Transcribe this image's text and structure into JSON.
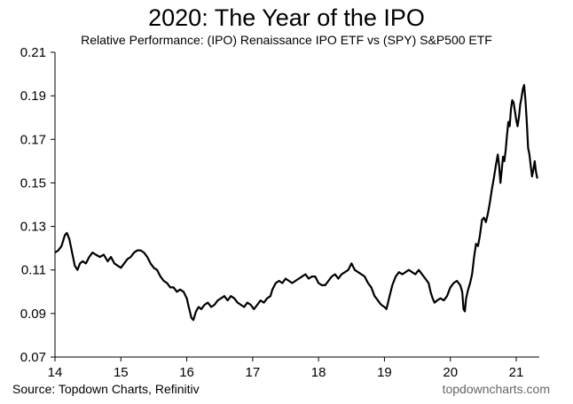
{
  "title": "2020: The Year of the IPO",
  "subtitle": "Relative Performance: (IPO) Renaissance IPO ETF vs (SPY) S&P500 ETF",
  "source": "Source: Topdown Charts, Refinitiv",
  "brand": "topdowncharts.com",
  "chart_data": {
    "type": "line",
    "title": "2020: The Year of the IPO",
    "subtitle": "Relative Performance: (IPO) Renaissance IPO ETF vs (SPY) S&P500 ETF",
    "xlabel": "",
    "ylabel": "",
    "xlim": [
      14,
      21.35
    ],
    "ylim": [
      0.07,
      0.21
    ],
    "x_ticks": [
      14,
      15,
      16,
      17,
      18,
      19,
      20,
      21
    ],
    "x_tick_labels": [
      "14",
      "15",
      "16",
      "17",
      "18",
      "19",
      "20",
      "21"
    ],
    "y_ticks": [
      0.07,
      0.09,
      0.11,
      0.13,
      0.15,
      0.17,
      0.19,
      0.21
    ],
    "y_tick_labels": [
      "0.07",
      "0.09",
      "0.11",
      "0.13",
      "0.15",
      "0.17",
      "0.19",
      "0.21"
    ],
    "grid": false,
    "legend": "none",
    "color": "#000000",
    "series": [
      {
        "points": [
          [
            14.0,
            0.118
          ],
          [
            14.05,
            0.119
          ],
          [
            14.1,
            0.121
          ],
          [
            14.15,
            0.126
          ],
          [
            14.18,
            0.127
          ],
          [
            14.22,
            0.124
          ],
          [
            14.26,
            0.118
          ],
          [
            14.3,
            0.112
          ],
          [
            14.34,
            0.11
          ],
          [
            14.38,
            0.113
          ],
          [
            14.42,
            0.114
          ],
          [
            14.47,
            0.113
          ],
          [
            14.52,
            0.116
          ],
          [
            14.57,
            0.118
          ],
          [
            14.62,
            0.117
          ],
          [
            14.68,
            0.116
          ],
          [
            14.74,
            0.117
          ],
          [
            14.8,
            0.114
          ],
          [
            14.85,
            0.116
          ],
          [
            14.9,
            0.113
          ],
          [
            14.95,
            0.112
          ],
          [
            15.0,
            0.111
          ],
          [
            15.05,
            0.113
          ],
          [
            15.1,
            0.115
          ],
          [
            15.15,
            0.116
          ],
          [
            15.2,
            0.118
          ],
          [
            15.25,
            0.119
          ],
          [
            15.3,
            0.119
          ],
          [
            15.35,
            0.118
          ],
          [
            15.4,
            0.116
          ],
          [
            15.45,
            0.113
          ],
          [
            15.5,
            0.111
          ],
          [
            15.55,
            0.11
          ],
          [
            15.6,
            0.107
          ],
          [
            15.65,
            0.105
          ],
          [
            15.7,
            0.104
          ],
          [
            15.75,
            0.102
          ],
          [
            15.8,
            0.102
          ],
          [
            15.85,
            0.1
          ],
          [
            15.9,
            0.101
          ],
          [
            15.95,
            0.1
          ],
          [
            16.0,
            0.097
          ],
          [
            16.03,
            0.093
          ],
          [
            16.07,
            0.088
          ],
          [
            16.1,
            0.087
          ],
          [
            16.14,
            0.091
          ],
          [
            16.18,
            0.093
          ],
          [
            16.22,
            0.092
          ],
          [
            16.27,
            0.094
          ],
          [
            16.32,
            0.095
          ],
          [
            16.37,
            0.093
          ],
          [
            16.42,
            0.094
          ],
          [
            16.47,
            0.096
          ],
          [
            16.52,
            0.097
          ],
          [
            16.57,
            0.098
          ],
          [
            16.62,
            0.096
          ],
          [
            16.67,
            0.098
          ],
          [
            16.72,
            0.097
          ],
          [
            16.77,
            0.095
          ],
          [
            16.82,
            0.094
          ],
          [
            16.87,
            0.093
          ],
          [
            16.92,
            0.095
          ],
          [
            16.97,
            0.094
          ],
          [
            17.02,
            0.092
          ],
          [
            17.07,
            0.094
          ],
          [
            17.12,
            0.096
          ],
          [
            17.17,
            0.095
          ],
          [
            17.22,
            0.097
          ],
          [
            17.27,
            0.098
          ],
          [
            17.3,
            0.101
          ],
          [
            17.35,
            0.104
          ],
          [
            17.4,
            0.105
          ],
          [
            17.45,
            0.104
          ],
          [
            17.5,
            0.106
          ],
          [
            17.55,
            0.105
          ],
          [
            17.6,
            0.104
          ],
          [
            17.65,
            0.105
          ],
          [
            17.7,
            0.106
          ],
          [
            17.75,
            0.107
          ],
          [
            17.8,
            0.108
          ],
          [
            17.85,
            0.106
          ],
          [
            17.9,
            0.107
          ],
          [
            17.95,
            0.107
          ],
          [
            18.0,
            0.104
          ],
          [
            18.05,
            0.103
          ],
          [
            18.1,
            0.103
          ],
          [
            18.15,
            0.105
          ],
          [
            18.2,
            0.107
          ],
          [
            18.25,
            0.108
          ],
          [
            18.3,
            0.106
          ],
          [
            18.35,
            0.108
          ],
          [
            18.4,
            0.109
          ],
          [
            18.45,
            0.11
          ],
          [
            18.5,
            0.113
          ],
          [
            18.55,
            0.11
          ],
          [
            18.6,
            0.109
          ],
          [
            18.65,
            0.108
          ],
          [
            18.7,
            0.107
          ],
          [
            18.75,
            0.104
          ],
          [
            18.8,
            0.102
          ],
          [
            18.85,
            0.098
          ],
          [
            18.9,
            0.096
          ],
          [
            18.95,
            0.094
          ],
          [
            19.0,
            0.093
          ],
          [
            19.03,
            0.092
          ],
          [
            19.07,
            0.097
          ],
          [
            19.12,
            0.103
          ],
          [
            19.17,
            0.107
          ],
          [
            19.22,
            0.109
          ],
          [
            19.27,
            0.108
          ],
          [
            19.32,
            0.109
          ],
          [
            19.37,
            0.11
          ],
          [
            19.42,
            0.109
          ],
          [
            19.47,
            0.108
          ],
          [
            19.52,
            0.11
          ],
          [
            19.57,
            0.108
          ],
          [
            19.62,
            0.106
          ],
          [
            19.67,
            0.104
          ],
          [
            19.7,
            0.1
          ],
          [
            19.73,
            0.097
          ],
          [
            19.76,
            0.095
          ],
          [
            19.8,
            0.096
          ],
          [
            19.85,
            0.097
          ],
          [
            19.9,
            0.096
          ],
          [
            19.95,
            0.098
          ],
          [
            20.0,
            0.102
          ],
          [
            20.05,
            0.104
          ],
          [
            20.1,
            0.105
          ],
          [
            20.15,
            0.103
          ],
          [
            20.18,
            0.1
          ],
          [
            20.2,
            0.092
          ],
          [
            20.22,
            0.091
          ],
          [
            20.24,
            0.097
          ],
          [
            20.27,
            0.101
          ],
          [
            20.3,
            0.104
          ],
          [
            20.33,
            0.108
          ],
          [
            20.36,
            0.116
          ],
          [
            20.39,
            0.122
          ],
          [
            20.42,
            0.121
          ],
          [
            20.45,
            0.126
          ],
          [
            20.48,
            0.133
          ],
          [
            20.51,
            0.134
          ],
          [
            20.54,
            0.132
          ],
          [
            20.57,
            0.136
          ],
          [
            20.6,
            0.141
          ],
          [
            20.63,
            0.147
          ],
          [
            20.66,
            0.152
          ],
          [
            20.69,
            0.158
          ],
          [
            20.72,
            0.163
          ],
          [
            20.74,
            0.158
          ],
          [
            20.76,
            0.15
          ],
          [
            20.78,
            0.156
          ],
          [
            20.8,
            0.162
          ],
          [
            20.82,
            0.16
          ],
          [
            20.84,
            0.165
          ],
          [
            20.86,
            0.172
          ],
          [
            20.88,
            0.178
          ],
          [
            20.9,
            0.176
          ],
          [
            20.92,
            0.184
          ],
          [
            20.94,
            0.188
          ],
          [
            20.96,
            0.187
          ],
          [
            20.98,
            0.183
          ],
          [
            21.0,
            0.179
          ],
          [
            21.02,
            0.176
          ],
          [
            21.04,
            0.18
          ],
          [
            21.06,
            0.186
          ],
          [
            21.08,
            0.189
          ],
          [
            21.1,
            0.193
          ],
          [
            21.12,
            0.195
          ],
          [
            21.14,
            0.188
          ],
          [
            21.16,
            0.178
          ],
          [
            21.18,
            0.166
          ],
          [
            21.2,
            0.163
          ],
          [
            21.22,
            0.158
          ],
          [
            21.24,
            0.153
          ],
          [
            21.26,
            0.156
          ],
          [
            21.28,
            0.16
          ],
          [
            21.3,
            0.155
          ],
          [
            21.32,
            0.152
          ]
        ]
      }
    ]
  }
}
